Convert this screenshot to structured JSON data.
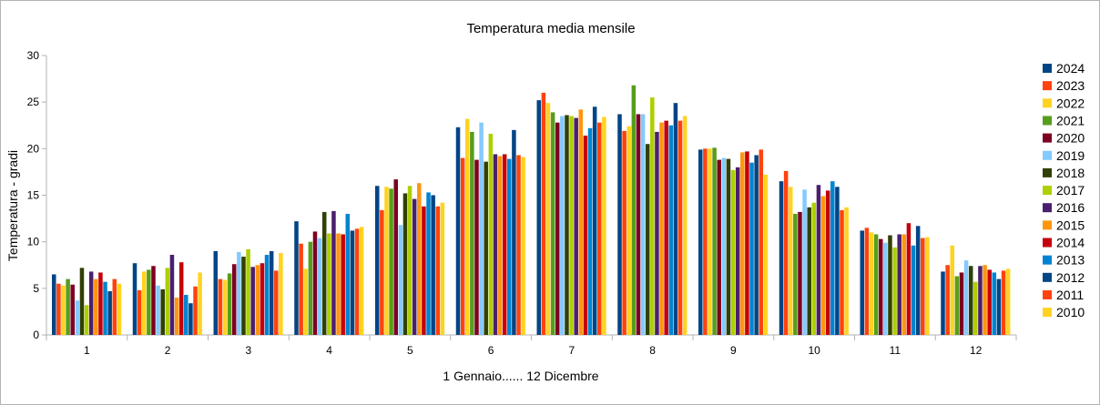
{
  "chart_data": {
    "type": "bar",
    "title": "Temperatura media  mensile",
    "xlabel": "1 Gennaio...... 12 Dicembre",
    "ylabel": "Temperatura - gradi",
    "ylim": [
      0,
      30
    ],
    "yticks": [
      0,
      5,
      10,
      15,
      20,
      25,
      30
    ],
    "grid": false,
    "legend_position": "right",
    "categories": [
      "1",
      "2",
      "3",
      "4",
      "5",
      "6",
      "7",
      "8",
      "9",
      "10",
      "11",
      "12"
    ],
    "series": [
      {
        "name": "2024",
        "color": "#004586",
        "values": [
          6.5,
          7.7,
          9.0,
          12.2,
          16.0,
          22.3,
          25.2,
          23.7,
          19.9,
          16.5,
          11.2,
          6.8
        ]
      },
      {
        "name": "2023",
        "color": "#ff420e",
        "values": [
          5.5,
          4.8,
          6.0,
          9.8,
          13.4,
          19.0,
          26.0,
          21.9,
          20.0,
          17.6,
          11.5,
          7.5
        ]
      },
      {
        "name": "2022",
        "color": "#ffd320",
        "values": [
          5.3,
          6.8,
          5.9,
          7.1,
          15.9,
          23.2,
          24.9,
          22.4,
          20.0,
          15.9,
          11.0,
          9.6
        ]
      },
      {
        "name": "2021",
        "color": "#579d1c",
        "values": [
          6.0,
          7.0,
          6.6,
          10.0,
          15.7,
          21.8,
          23.9,
          26.8,
          20.1,
          13.0,
          10.8,
          6.3
        ]
      },
      {
        "name": "2020",
        "color": "#7e0021",
        "values": [
          5.4,
          7.4,
          7.6,
          11.1,
          16.7,
          18.8,
          22.8,
          23.7,
          18.8,
          13.2,
          10.3,
          6.7
        ]
      },
      {
        "name": "2019",
        "color": "#83caff",
        "values": [
          3.7,
          5.3,
          8.9,
          10.4,
          11.8,
          22.8,
          23.5,
          23.7,
          19.0,
          15.6,
          9.9,
          8.0
        ]
      },
      {
        "name": "2018",
        "color": "#314004",
        "values": [
          7.2,
          4.9,
          8.4,
          13.2,
          15.2,
          18.6,
          23.6,
          20.5,
          18.9,
          13.7,
          10.7,
          7.4
        ]
      },
      {
        "name": "2017",
        "color": "#aecf00",
        "values": [
          3.2,
          7.2,
          9.2,
          10.9,
          16.0,
          21.6,
          23.5,
          25.5,
          17.7,
          14.2,
          9.4,
          5.7
        ]
      },
      {
        "name": "2016",
        "color": "#4b1f6f",
        "values": [
          6.8,
          8.6,
          7.3,
          13.3,
          14.6,
          19.4,
          23.3,
          21.8,
          18.0,
          16.1,
          10.8,
          7.4
        ]
      },
      {
        "name": "2015",
        "color": "#ff950e",
        "values": [
          6.0,
          4.0,
          7.5,
          10.9,
          16.3,
          19.2,
          24.2,
          22.8,
          19.6,
          14.9,
          10.8,
          7.5
        ]
      },
      {
        "name": "2014",
        "color": "#c5000b",
        "values": [
          6.7,
          7.8,
          7.7,
          10.8,
          13.8,
          19.4,
          21.4,
          23.0,
          19.7,
          15.5,
          12.0,
          7.0
        ]
      },
      {
        "name": "2013",
        "color": "#0084d1",
        "values": [
          5.7,
          4.3,
          8.6,
          13.0,
          15.3,
          18.9,
          22.2,
          22.5,
          18.5,
          16.5,
          9.6,
          6.7
        ]
      },
      {
        "name": "2012",
        "color": "#004586",
        "values": [
          4.7,
          3.4,
          9.0,
          11.2,
          15.0,
          22.0,
          24.5,
          24.9,
          19.3,
          15.9,
          11.7,
          6.0
        ]
      },
      {
        "name": "2011",
        "color": "#ff420e",
        "values": [
          6.0,
          5.2,
          6.9,
          11.4,
          13.8,
          19.3,
          22.8,
          23.0,
          19.9,
          13.4,
          10.4,
          6.9
        ]
      },
      {
        "name": "2010",
        "color": "#ffd320",
        "values": [
          5.5,
          6.7,
          8.8,
          11.6,
          14.2,
          19.1,
          23.4,
          23.5,
          17.2,
          13.7,
          10.5,
          7.1
        ]
      }
    ]
  }
}
